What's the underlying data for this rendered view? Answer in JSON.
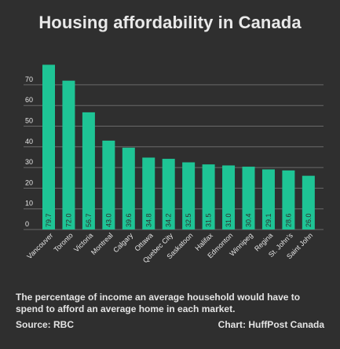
{
  "chart_data": {
    "type": "bar",
    "title": "Housing affordability in Canada",
    "categories": [
      "Vancouver",
      "Toronto",
      "Victoria",
      "Montreal",
      "Calgary",
      "Ottawa",
      "Quebec City",
      "Saskatoon",
      "Halifax",
      "Edmonton",
      "Winnipeg",
      "Regina",
      "St. John's",
      "Saint John"
    ],
    "values": [
      79.7,
      72.0,
      56.7,
      43.0,
      39.6,
      34.8,
      34.2,
      32.5,
      31.5,
      31.0,
      30.4,
      29.1,
      28.6,
      26.0
    ],
    "value_labels": [
      "79.7",
      "72.0",
      "56.7",
      "43.0",
      "39.6",
      "34.8",
      "34.2",
      "32.5",
      "31.5",
      "31.0",
      "30.4",
      "29.1",
      "28.6",
      "26.0"
    ],
    "yticks": [
      0,
      10,
      20,
      30,
      40,
      50,
      60,
      70
    ],
    "ylim": [
      0,
      80
    ],
    "grid": true,
    "xlabel": "",
    "ylabel": "",
    "colors": {
      "bar": "#1ec495",
      "grid": "#6a6a6a",
      "background": "#2f2f2f",
      "text": "#e6e6e6",
      "value_label": "#2f2f2f"
    }
  },
  "caption": "The percentage of income an average household would have to spend to afford an average home in each market.",
  "source": "Source: RBC",
  "credit": "Chart: HuffPost Canada"
}
